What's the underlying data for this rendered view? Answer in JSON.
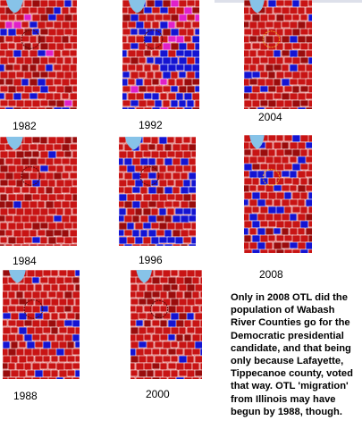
{
  "caption": "Only in 2008 OTL did the population of Wabash River Counties go for the Democratic presidential candidate, and that being only because Lafayette, Tippecanoe county, voted that way.  OTL 'migration' from Illinois may have begun by 1988, though.",
  "colors": {
    "republican": "#c81414",
    "republican_dark": "#9a0c0c",
    "democratic": "#1414d2",
    "lake": "#87c3e8",
    "third_party": "#e020c8",
    "border": "#ffffff",
    "highlight": "#e8a020"
  },
  "maps": [
    {
      "id": "m1982",
      "year": "1982",
      "blue": 0.16,
      "dark": 0.18,
      "pink": 0.02
    },
    {
      "id": "m1992",
      "year": "1992",
      "blue": 0.34,
      "dark": 0.12,
      "pink": 0.06
    },
    {
      "id": "m2004",
      "year": "2004",
      "blue": 0.06,
      "dark": 0.16,
      "pink": 0.0
    },
    {
      "id": "m1984",
      "year": "1984",
      "blue": 0.03,
      "dark": 0.22,
      "pink": 0.0
    },
    {
      "id": "m1996",
      "year": "1996",
      "blue": 0.28,
      "dark": 0.12,
      "pink": 0.0
    },
    {
      "id": "m2008",
      "year": "2008",
      "blue": 0.22,
      "dark": 0.12,
      "pink": 0.0
    },
    {
      "id": "m1988",
      "year": "1988",
      "blue": 0.1,
      "dark": 0.12,
      "pink": 0.0
    },
    {
      "id": "m2000",
      "year": "2000",
      "blue": 0.08,
      "dark": 0.14,
      "pink": 0.0
    }
  ]
}
